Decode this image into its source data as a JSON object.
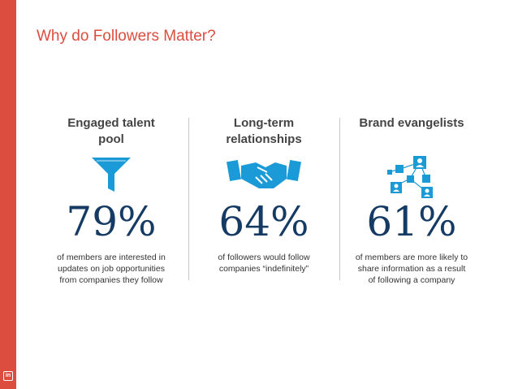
{
  "title": "Why do Followers Matter?",
  "brand_badge": "in",
  "columns": [
    {
      "heading_line1": "Engaged talent",
      "heading_line2": "pool",
      "icon": "funnel-icon",
      "stat": "79%",
      "desc_line1": "of members are interested in",
      "desc_line2": "updates on job opportunities",
      "desc_line3": "from companies they follow"
    },
    {
      "heading_line1": "Long-term",
      "heading_line2": "relationships",
      "icon": "handshake-icon",
      "stat": "64%",
      "desc_line1": "of followers would follow",
      "desc_line2": "companies “indefinitely”",
      "desc_line3": ""
    },
    {
      "heading_line1": "Brand evangelists",
      "heading_line2": "",
      "icon": "network-people-icon",
      "stat": "61%",
      "desc_line1": "of members are more likely to",
      "desc_line2": "share information as a result",
      "desc_line3": "of following a company"
    }
  ],
  "colors": {
    "accent": "#dd4d3f",
    "icon_blue": "#1a9bd7",
    "stat_navy": "#153a63"
  }
}
